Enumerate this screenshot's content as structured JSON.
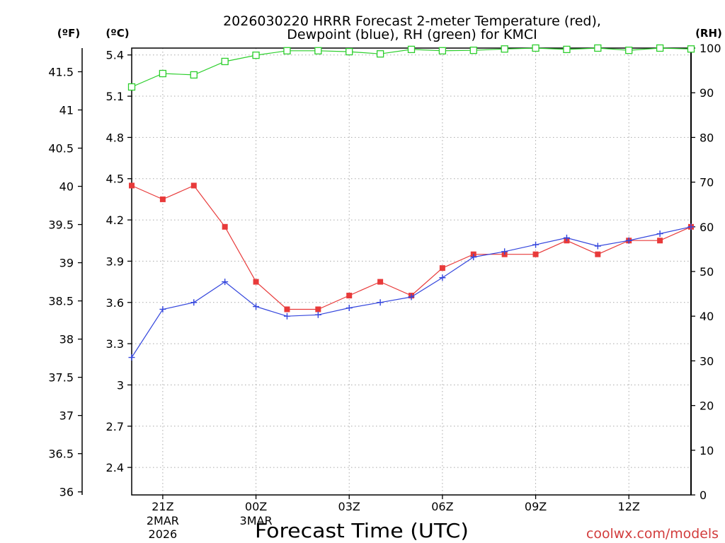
{
  "credit": "coolwx.com/models",
  "credit_color": "#d23c3c",
  "chart_data": {
    "type": "line",
    "title": [
      "2026030220 HRRR Forecast 2-meter Temperature (red),",
      "Dewpoint (blue), RH (green) for KMCI"
    ],
    "xlabel": "Forecast Time (UTC)",
    "grid": true,
    "x": [
      "2026-03-02T20:00Z",
      "2026-03-02T21:00Z",
      "2026-03-02T22:00Z",
      "2026-03-02T23:00Z",
      "2026-03-03T00:00Z",
      "2026-03-03T01:00Z",
      "2026-03-03T02:00Z",
      "2026-03-03T03:00Z",
      "2026-03-03T04:00Z",
      "2026-03-03T05:00Z",
      "2026-03-03T06:00Z",
      "2026-03-03T07:00Z",
      "2026-03-03T08:00Z",
      "2026-03-03T09:00Z",
      "2026-03-03T10:00Z",
      "2026-03-03T11:00Z",
      "2026-03-03T12:00Z",
      "2026-03-03T13:00Z",
      "2026-03-03T14:00Z"
    ],
    "xlim": [
      "2026-03-02T20:00Z",
      "2026-03-03T14:00Z"
    ],
    "x_ticks": [
      {
        "value": "2026-03-02T21:00Z",
        "label": "21Z",
        "date": "2MAR",
        "year": "2026"
      },
      {
        "value": "2026-03-03T00:00Z",
        "label": "00Z",
        "date": "3MAR"
      },
      {
        "value": "2026-03-03T03:00Z",
        "label": "03Z"
      },
      {
        "value": "2026-03-03T06:00Z",
        "label": "06Z"
      },
      {
        "value": "2026-03-03T09:00Z",
        "label": "09Z"
      },
      {
        "value": "2026-03-03T12:00Z",
        "label": "12Z"
      }
    ],
    "y_fahrenheit": {
      "label": "(ºF)",
      "ticks": [
        36,
        36.5,
        37,
        37.5,
        38,
        38.5,
        39,
        39.5,
        40,
        40.5,
        41,
        41.5
      ]
    },
    "y_celsius": {
      "label": "(ºC)",
      "ylim": [
        2.2,
        5.45
      ],
      "ticks": [
        2.4,
        2.7,
        3,
        3.3,
        3.6,
        3.9,
        4.2,
        4.5,
        4.8,
        5.1,
        5.4
      ],
      "series": [
        {
          "color": "#e83a3a",
          "marker": "filled-square",
          "values": [
            4.45,
            4.35,
            4.45,
            4.15,
            3.75,
            3.55,
            3.55,
            3.65,
            3.75,
            3.65,
            3.85,
            3.95,
            3.95,
            3.95,
            4.05,
            3.95,
            4.05,
            4.05,
            4.15
          ]
        },
        {
          "color": "#3446dd",
          "marker": "plus",
          "values": [
            3.2,
            3.55,
            3.6,
            3.75,
            3.57,
            3.5,
            3.51,
            3.56,
            3.6,
            3.64,
            3.78,
            3.93,
            3.97,
            4.02,
            4.07,
            4.01,
            4.05,
            4.1,
            4.15
          ]
        }
      ]
    },
    "y_rh": {
      "label": "(RH)",
      "ylim": [
        0,
        100
      ],
      "ticks": [
        0,
        10,
        20,
        30,
        40,
        50,
        60,
        70,
        80,
        90,
        100
      ],
      "series": [
        {
          "color": "#2ccf2c",
          "marker": "open-square",
          "values": [
            91.3,
            94.3,
            94.0,
            97.0,
            98.4,
            99.4,
            99.4,
            99.2,
            98.7,
            99.7,
            99.4,
            99.5,
            99.8,
            100,
            99.7,
            100,
            99.5,
            100,
            99.8
          ]
        }
      ]
    }
  }
}
